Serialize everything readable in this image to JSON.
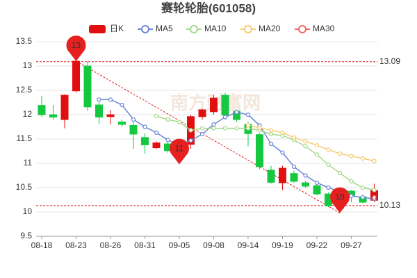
{
  "chart_data": {
    "type": "candlestick",
    "title": "赛轮轮胎(601058)",
    "watermark": "南方财富网",
    "categories": [
      "08-18",
      null,
      null,
      "08-23",
      null,
      null,
      "08-26",
      null,
      null,
      "08-31",
      null,
      null,
      "09-05",
      null,
      null,
      "09-08",
      null,
      null,
      "09-14",
      null,
      null,
      "09-19",
      null,
      null,
      "09-22",
      null,
      null,
      "09-27",
      null,
      null
    ],
    "candles": {
      "name": "日K",
      "up_color": "#e01010",
      "down_color": "#14c840",
      "open": [
        12.19,
        12.0,
        11.9,
        12.49,
        13.0,
        12.2,
        11.96,
        11.85,
        11.78,
        11.53,
        11.32,
        11.4,
        11.17,
        11.39,
        11.96,
        12.06,
        12.4,
        12.07,
        11.8,
        11.59,
        10.86,
        10.6,
        10.79,
        10.6,
        10.54,
        10.37,
        10.07,
        10.43,
        10.31,
        10.24
      ],
      "high": [
        12.39,
        12.2,
        12.42,
        13.1,
        13.1,
        12.3,
        12.1,
        11.9,
        11.85,
        11.62,
        11.45,
        11.5,
        11.5,
        12.0,
        12.12,
        12.4,
        12.45,
        12.1,
        11.85,
        11.62,
        10.95,
        10.95,
        10.85,
        10.64,
        10.57,
        10.4,
        10.3,
        10.45,
        10.35,
        10.58
      ],
      "low": [
        11.95,
        11.9,
        11.72,
        12.45,
        12.08,
        11.8,
        11.8,
        11.75,
        11.3,
        11.2,
        11.3,
        11.22,
        10.98,
        11.3,
        11.9,
        12.0,
        11.9,
        11.85,
        11.35,
        10.88,
        10.58,
        10.45,
        10.6,
        10.5,
        10.35,
        10.1,
        9.98,
        10.2,
        10.18,
        10.2
      ],
      "close": [
        12.0,
        11.95,
        12.4,
        13.1,
        12.16,
        11.95,
        12.0,
        11.8,
        11.6,
        11.38,
        11.42,
        11.26,
        11.39,
        11.96,
        12.1,
        12.34,
        11.99,
        11.9,
        11.61,
        10.93,
        10.61,
        10.9,
        10.63,
        10.53,
        10.37,
        10.13,
        10.27,
        10.34,
        10.2,
        10.44
      ]
    },
    "series": [
      {
        "name": "MA5",
        "color": "#6b87d6",
        "values": [
          null,
          null,
          null,
          null,
          null,
          12.31,
          12.31,
          12.2,
          11.9,
          11.75,
          11.63,
          11.48,
          11.38,
          11.47,
          11.6,
          11.8,
          11.95,
          12.05,
          12.0,
          11.78,
          11.4,
          11.22,
          10.93,
          10.75,
          10.6,
          10.5,
          10.42,
          10.33,
          10.3,
          10.27
        ]
      },
      {
        "name": "MA10",
        "color": "#a3d98a",
        "values": [
          null,
          null,
          null,
          null,
          null,
          null,
          null,
          null,
          null,
          null,
          11.97,
          11.9,
          11.85,
          11.68,
          11.72,
          11.72,
          11.72,
          11.72,
          11.72,
          11.68,
          11.6,
          11.57,
          11.48,
          11.35,
          11.18,
          10.97,
          10.8,
          10.63,
          10.5,
          10.45
        ]
      },
      {
        "name": "MA20",
        "color": "#f5cc6e",
        "values": [
          null,
          null,
          null,
          null,
          null,
          null,
          null,
          null,
          null,
          null,
          null,
          null,
          null,
          null,
          null,
          null,
          null,
          null,
          11.78,
          11.73,
          11.68,
          11.63,
          11.53,
          11.45,
          11.37,
          11.28,
          11.2,
          11.15,
          11.1,
          11.05
        ]
      },
      {
        "name": "MA30",
        "color": "#ee6666",
        "values": [
          null,
          null,
          null,
          null,
          null,
          null,
          null,
          null,
          null,
          null,
          null,
          null,
          null,
          null,
          null,
          null,
          null,
          null,
          null,
          null,
          null,
          null,
          null,
          null,
          null,
          null,
          null,
          null,
          null,
          10.3
        ]
      }
    ],
    "ylim": [
      9.5,
      13.5
    ],
    "yticks": [
      9.5,
      10,
      10.5,
      11,
      11.5,
      12,
      12.5,
      13,
      13.5
    ],
    "grid": true,
    "reference_lines": [
      13.09,
      10.13
    ],
    "pins": [
      {
        "label": "13",
        "index": 3,
        "value": 13.1
      },
      {
        "label": "11",
        "index": 12,
        "value": 10.98
      },
      {
        "label": "10",
        "index": 26,
        "value": 9.98
      }
    ]
  }
}
